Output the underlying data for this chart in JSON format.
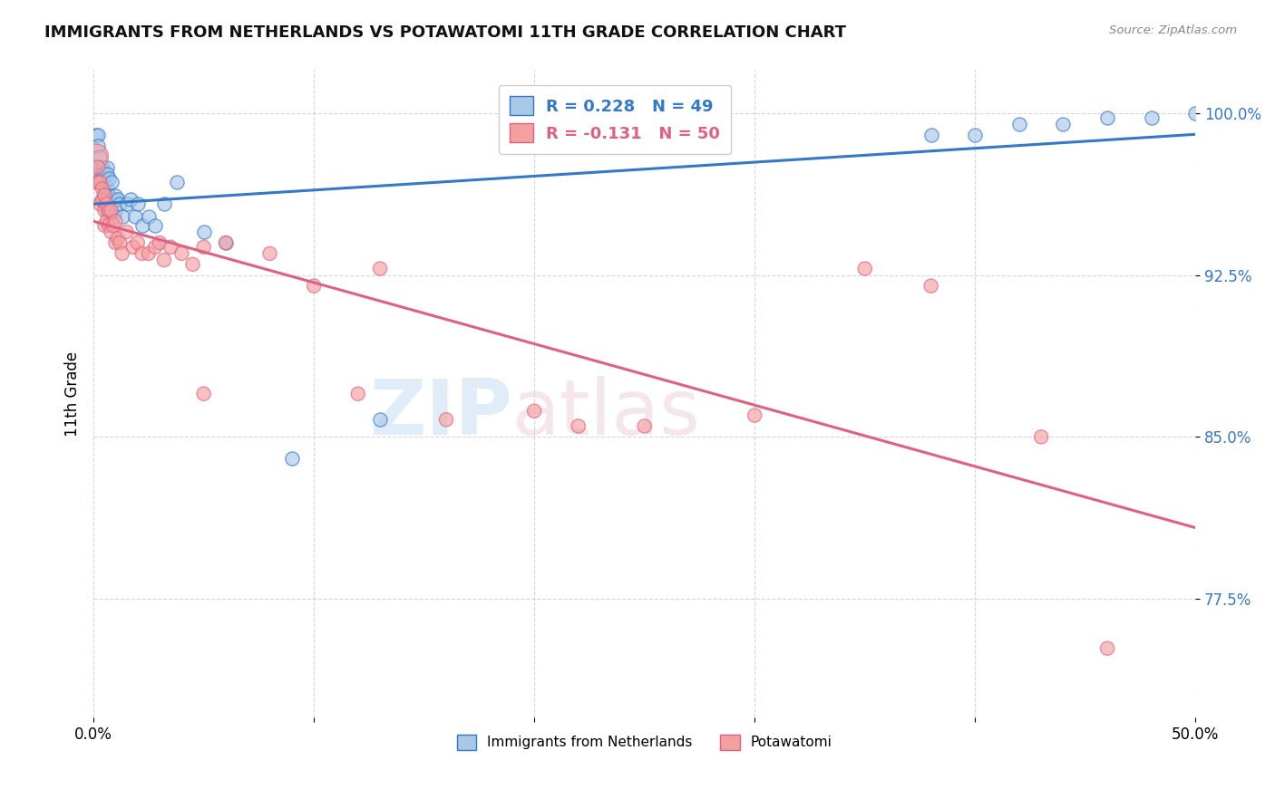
{
  "title": "IMMIGRANTS FROM NETHERLANDS VS POTAWATOMI 11TH GRADE CORRELATION CHART",
  "source": "Source: ZipAtlas.com",
  "xlabel": "",
  "ylabel": "11th Grade",
  "xlim": [
    0.0,
    0.5
  ],
  "ylim": [
    0.72,
    1.02
  ],
  "yticks": [
    0.775,
    0.85,
    0.925,
    1.0
  ],
  "ytick_labels": [
    "77.5%",
    "85.0%",
    "92.5%",
    "100.0%"
  ],
  "xticks": [
    0.0,
    0.1,
    0.2,
    0.3,
    0.4,
    0.5
  ],
  "xtick_labels": [
    "0.0%",
    "",
    "",
    "",
    "",
    "50.0%"
  ],
  "blue_R": 0.228,
  "blue_N": 49,
  "pink_R": -0.131,
  "pink_N": 50,
  "blue_color": "#a8c8e8",
  "pink_color": "#f4a0a0",
  "blue_line_color": "#3478c8",
  "pink_line_color": "#e06080",
  "blue_label": "Immigrants from Netherlands",
  "pink_label": "Potawatomi",
  "blue_x": [
    0.001,
    0.002,
    0.002,
    0.003,
    0.003,
    0.003,
    0.004,
    0.004,
    0.004,
    0.005,
    0.005,
    0.005,
    0.005,
    0.006,
    0.006,
    0.006,
    0.006,
    0.007,
    0.007,
    0.007,
    0.008,
    0.008,
    0.009,
    0.009,
    0.01,
    0.01,
    0.011,
    0.012,
    0.013,
    0.015,
    0.017,
    0.019,
    0.02,
    0.022,
    0.025,
    0.028,
    0.032,
    0.038,
    0.05,
    0.06,
    0.09,
    0.13,
    0.38,
    0.4,
    0.42,
    0.44,
    0.46,
    0.48,
    0.5
  ],
  "blue_y": [
    0.99,
    0.99,
    0.985,
    0.98,
    0.975,
    0.97,
    0.975,
    0.968,
    0.96,
    0.972,
    0.968,
    0.965,
    0.958,
    0.975,
    0.972,
    0.965,
    0.955,
    0.97,
    0.962,
    0.955,
    0.968,
    0.958,
    0.96,
    0.952,
    0.962,
    0.955,
    0.96,
    0.958,
    0.952,
    0.958,
    0.96,
    0.952,
    0.958,
    0.948,
    0.952,
    0.948,
    0.958,
    0.968,
    0.945,
    0.94,
    0.84,
    0.858,
    0.99,
    0.99,
    0.995,
    0.995,
    0.998,
    0.998,
    1.0
  ],
  "pink_x": [
    0.001,
    0.001,
    0.002,
    0.002,
    0.003,
    0.003,
    0.004,
    0.004,
    0.005,
    0.005,
    0.005,
    0.006,
    0.006,
    0.007,
    0.007,
    0.008,
    0.008,
    0.009,
    0.01,
    0.01,
    0.011,
    0.012,
    0.013,
    0.015,
    0.018,
    0.02,
    0.022,
    0.025,
    0.028,
    0.03,
    0.032,
    0.035,
    0.04,
    0.045,
    0.05,
    0.06,
    0.08,
    0.1,
    0.13,
    0.16,
    0.2,
    0.25,
    0.3,
    0.38,
    0.43,
    0.05,
    0.12,
    0.22,
    0.35,
    0.46
  ],
  "pink_y": [
    0.98,
    0.968,
    0.975,
    0.968,
    0.968,
    0.958,
    0.965,
    0.96,
    0.962,
    0.955,
    0.948,
    0.958,
    0.95,
    0.955,
    0.948,
    0.955,
    0.945,
    0.948,
    0.95,
    0.94,
    0.942,
    0.94,
    0.935,
    0.945,
    0.938,
    0.94,
    0.935,
    0.935,
    0.938,
    0.94,
    0.932,
    0.938,
    0.935,
    0.93,
    0.938,
    0.94,
    0.935,
    0.92,
    0.928,
    0.858,
    0.862,
    0.855,
    0.86,
    0.92,
    0.85,
    0.87,
    0.87,
    0.855,
    0.928,
    0.752
  ],
  "pink_large_idx": 0
}
